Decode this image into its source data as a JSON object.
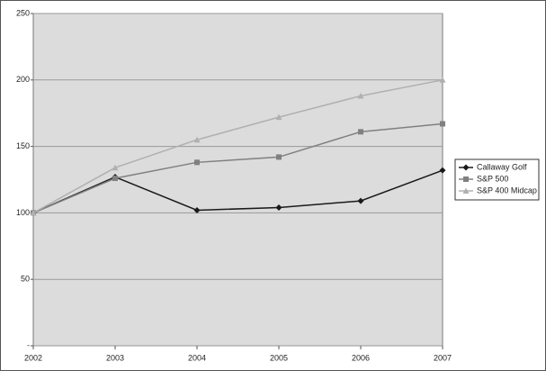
{
  "chart_data": {
    "type": "line",
    "categories": [
      "2002",
      "2003",
      "2004",
      "2005",
      "2006",
      "2007"
    ],
    "series": [
      {
        "name": "Callaway Golf",
        "color": "#1a1a1a",
        "marker": "diamond",
        "values": [
          100,
          127,
          102,
          104,
          109,
          132
        ]
      },
      {
        "name": "S&P 500",
        "color": "#808080",
        "marker": "square",
        "values": [
          100,
          126,
          138,
          142,
          161,
          167
        ]
      },
      {
        "name": "S&P 400 Midcap",
        "color": "#b0b0b0",
        "marker": "triangle",
        "values": [
          100,
          134,
          155,
          172,
          188,
          200
        ]
      }
    ],
    "ylim": [
      0,
      250
    ],
    "yticks": [
      {
        "value": 0,
        "label": "-"
      },
      50,
      100,
      150,
      200,
      250
    ],
    "grid": true,
    "legend": "right"
  }
}
